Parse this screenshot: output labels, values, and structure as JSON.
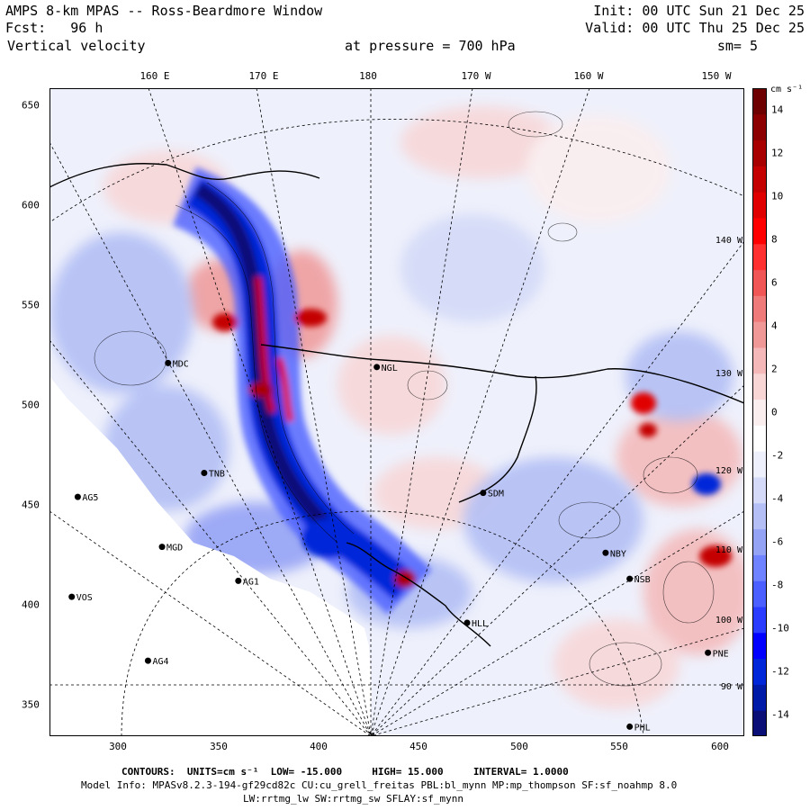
{
  "header": {
    "title": "AMPS 8-km MPAS -- Ross-Beardmore Window",
    "fcst_label": "Fcst:",
    "fcst_value": "96 h",
    "field": "Vertical velocity",
    "pressure_label": "at pressure =",
    "pressure_value": "700 hPa",
    "init": "Init: 00 UTC Sun 21 Dec 25",
    "valid": "Valid: 00 UTC Thu 25 Dec 25",
    "smooth": "sm= 5"
  },
  "lon_top_labels": [
    "160 E",
    "170 E",
    "180",
    "170 W",
    "160 W",
    "150 W"
  ],
  "x_ticks": [
    "300",
    "350",
    "400",
    "450",
    "500",
    "550",
    "600"
  ],
  "y_ticks": [
    "650",
    "600",
    "550",
    "500",
    "450",
    "400",
    "350"
  ],
  "colorbar": {
    "unit": "cm s⁻¹",
    "ticks": [
      "14",
      "12",
      "10",
      "8",
      "6",
      "4",
      "2",
      "0",
      "-2",
      "-4",
      "-6",
      "-8",
      "-10",
      "-12",
      "-14"
    ],
    "range": [
      -15,
      15
    ],
    "colors": [
      "#0a0f78",
      "#001aa8",
      "#0026d9",
      "#0000ff",
      "#2a3cff",
      "#4b5eff",
      "#6f82ff",
      "#95a3f5",
      "#b4c0f5",
      "#d4daf8",
      "#eef0fb",
      "#ffffff",
      "#fbeeee",
      "#f8d6d6",
      "#f4b8b8",
      "#f09898",
      "#ee7a7a",
      "#f05656",
      "#ff3030",
      "#ff0000",
      "#e00000",
      "#c40000",
      "#a80000",
      "#8c0000",
      "#6e0000"
    ]
  },
  "stations": [
    {
      "name": "MDC",
      "x": 325,
      "y": 521
    },
    {
      "name": "NGL",
      "x": 429,
      "y": 519
    },
    {
      "name": "TNB",
      "x": 343,
      "y": 466
    },
    {
      "name": "AG5",
      "x": 280,
      "y": 454
    },
    {
      "name": "SDM",
      "x": 482,
      "y": 456
    },
    {
      "name": "MGD",
      "x": 322,
      "y": 429
    },
    {
      "name": "AG1",
      "x": 360,
      "y": 412
    },
    {
      "name": "NBY",
      "x": 543,
      "y": 426
    },
    {
      "name": "NSB",
      "x": 555,
      "y": 413
    },
    {
      "name": "VOS",
      "x": 277,
      "y": 404
    },
    {
      "name": "HLL",
      "x": 474,
      "y": 391
    },
    {
      "name": "PNE",
      "x": 594,
      "y": 376
    },
    {
      "name": "AG4",
      "x": 315,
      "y": 372
    },
    {
      "name": "PHL",
      "x": 555,
      "y": 339
    }
  ],
  "right_labels": [
    "140 W",
    "130 W",
    "120 W",
    "110 W",
    "100 W",
    "90 W"
  ],
  "footer": {
    "contours_label": "CONTOURS:",
    "units_label": "UNITS=cm s⁻¹",
    "low": "LOW= -15.000",
    "high": "HIGH= 15.000",
    "interval": "INTERVAL= 1.0000",
    "model_info": "Model Info: MPASv8.2.3-194-gf29cd82c CU:cu_grell_freitas PBL:bl_mynn MP:mp_thompson SF:sf_noahmp 8.0",
    "model_info2": "LW:rrtmg_lw SW:rrtmg_sw SFLAY:sf_mynn"
  }
}
